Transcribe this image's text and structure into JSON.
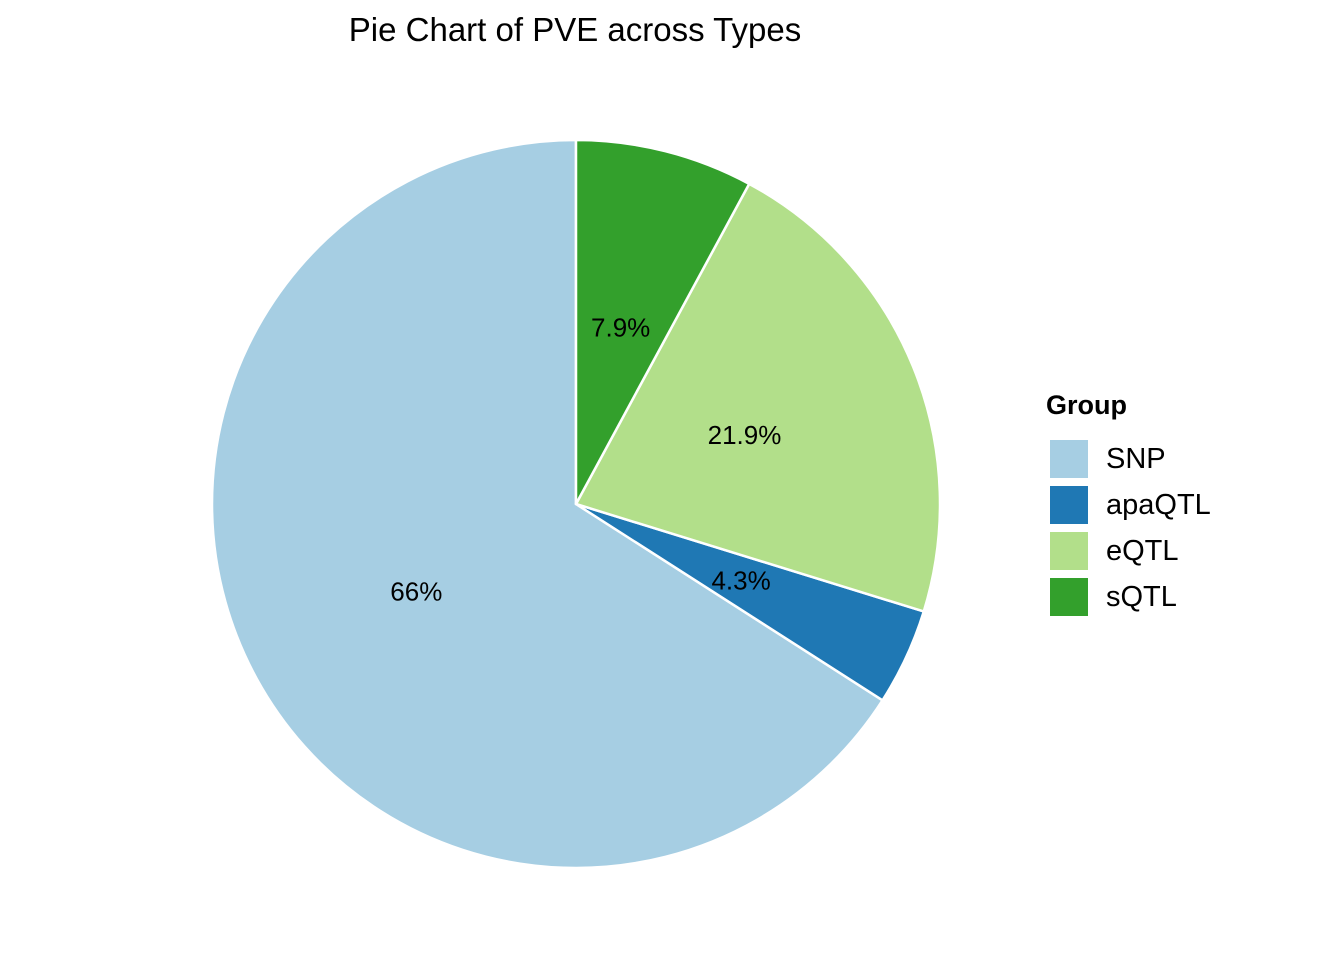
{
  "chart_data": {
    "type": "pie",
    "title": "Pie Chart of PVE across Types",
    "legend": {
      "title": "Group",
      "placement": "right"
    },
    "start_angle_deg": 0,
    "direction": "counterclockwise",
    "slices": [
      {
        "name": "SNP",
        "value": 66.0,
        "label": "66%",
        "color": "#A6CEE3"
      },
      {
        "name": "apaQTL",
        "value": 4.3,
        "label": "4.3%",
        "color": "#1F78B4"
      },
      {
        "name": "eQTL",
        "value": 21.9,
        "label": "21.9%",
        "color": "#B2DF8A"
      },
      {
        "name": "sQTL",
        "value": 7.9,
        "label": "7.9%",
        "color": "#33A02C"
      }
    ]
  }
}
